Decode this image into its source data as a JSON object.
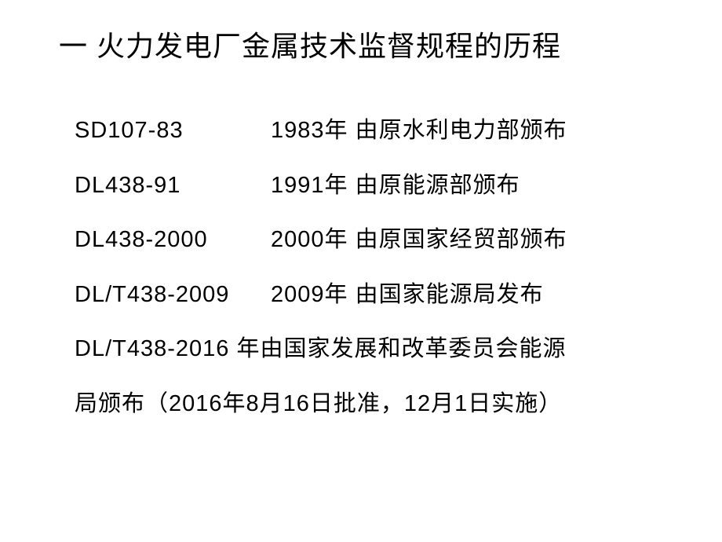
{
  "title": "一 火力发电厂金属技术监督规程的历程",
  "rows": [
    {
      "code": "SD107-83",
      "year": "1983年",
      "desc": "由原水利电力部颁布"
    },
    {
      "code": "DL438-91",
      "year": "1991年",
      "desc": "由原能源部颁布"
    },
    {
      "code": "DL438-2000",
      "year": "2000年",
      "desc": "由原国家经贸部颁布"
    },
    {
      "code": "DL/T438-2009",
      "year": "2009年",
      "desc": "由国家能源局发布"
    }
  ],
  "lastRow1": "DL/T438-2016 年由国家发展和改革委员会能源",
  "lastRow2": "局颁布（2016年8月16日批准，12月1日实施）",
  "colors": {
    "background": "#ffffff",
    "text": "#000000"
  },
  "fonts": {
    "title_size": 36,
    "body_size": 29
  }
}
